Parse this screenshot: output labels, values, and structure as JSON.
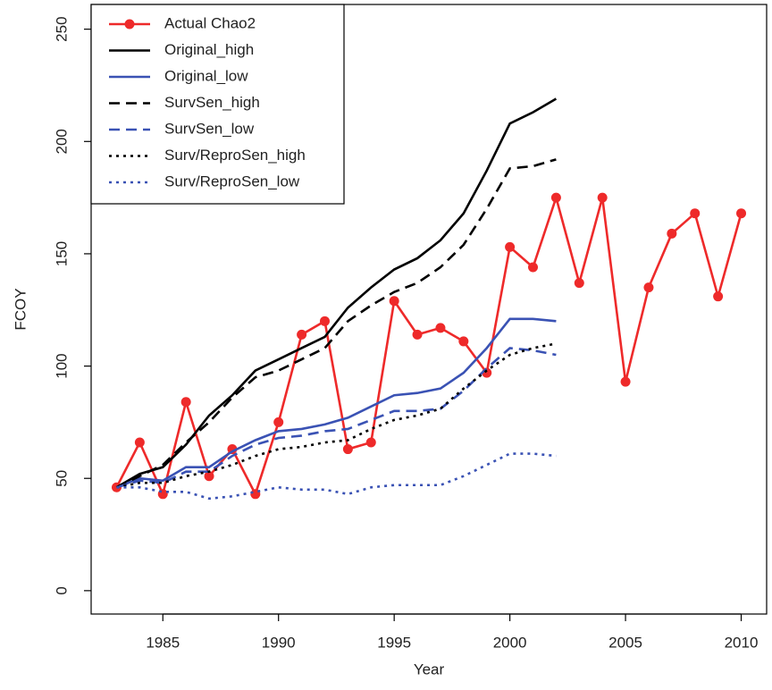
{
  "chart_data": {
    "type": "line",
    "x_label": "Year",
    "y_label": "FCOY",
    "xlim": [
      1981.9,
      2011.1
    ],
    "ylim": [
      -10.4,
      261
    ],
    "xticks": [
      1985,
      1990,
      1995,
      2000,
      2005,
      2010
    ],
    "yticks": [
      0,
      50,
      100,
      150,
      200,
      250
    ],
    "legend": "top-left",
    "series": [
      {
        "name": "Actual Chao2",
        "color": "#ee2a2a",
        "dash": "solid",
        "marker": true,
        "x": [
          1983,
          1984,
          1985,
          1986,
          1987,
          1988,
          1989,
          1990,
          1991,
          1992,
          1993,
          1994,
          1995,
          1996,
          1997,
          1998,
          1999,
          2000,
          2001,
          2002,
          2003,
          2004,
          2005,
          2006,
          2007,
          2008,
          2009,
          2010
        ],
        "values": [
          46,
          66,
          43,
          84,
          51,
          63,
          43,
          75,
          114,
          120,
          63,
          66,
          129,
          114,
          117,
          111,
          97,
          153,
          144,
          175,
          137,
          175,
          93,
          135,
          159,
          168,
          131,
          168
        ]
      },
      {
        "name": "Original_high",
        "color": "#000000",
        "dash": "solid",
        "marker": false,
        "x": [
          1983,
          1984,
          1985,
          1986,
          1987,
          1988,
          1989,
          1990,
          1991,
          1992,
          1993,
          1994,
          1995,
          1996,
          1997,
          1998,
          1999,
          2000,
          2001,
          2002
        ],
        "values": [
          46,
          52,
          55,
          65,
          78,
          87,
          98,
          103,
          108,
          113,
          126,
          135,
          143,
          148,
          156,
          168,
          187,
          208,
          213,
          219
        ]
      },
      {
        "name": "Original_low",
        "color": "#3a52b4",
        "dash": "solid",
        "marker": false,
        "x": [
          1983,
          1984,
          1985,
          1986,
          1987,
          1988,
          1989,
          1990,
          1991,
          1992,
          1993,
          1994,
          1995,
          1996,
          1997,
          1998,
          1999,
          2000,
          2001,
          2002
        ],
        "values": [
          46,
          50,
          49,
          55,
          55,
          62,
          67,
          71,
          72,
          74,
          77,
          82,
          87,
          88,
          90,
          97,
          108,
          121,
          121,
          120
        ]
      },
      {
        "name": "SurvSen_high",
        "color": "#000000",
        "dash": "dashed",
        "marker": false,
        "x": [
          1983,
          1984,
          1985,
          1986,
          1987,
          1988,
          1989,
          1990,
          1991,
          1992,
          1993,
          1994,
          1995,
          1996,
          1997,
          1998,
          1999,
          2000,
          2001,
          2002
        ],
        "values": [
          46,
          51,
          56,
          66,
          75,
          86,
          95,
          98,
          103,
          108,
          120,
          127,
          133,
          137,
          144,
          154,
          170,
          188,
          189,
          192
        ]
      },
      {
        "name": "SurvSen_low",
        "color": "#3a52b4",
        "dash": "dashed",
        "marker": false,
        "x": [
          1983,
          1984,
          1985,
          1986,
          1987,
          1988,
          1989,
          1990,
          1991,
          1992,
          1993,
          1994,
          1995,
          1996,
          1997,
          1998,
          1999,
          2000,
          2001,
          2002
        ],
        "values": [
          46,
          49,
          48,
          53,
          53,
          60,
          65,
          68,
          69,
          71,
          72,
          76,
          80,
          80,
          81,
          89,
          99,
          108,
          107,
          105
        ]
      },
      {
        "name": "Surv/ReproSen_high",
        "color": "#000000",
        "dash": "dotted",
        "marker": false,
        "x": [
          1983,
          1984,
          1985,
          1986,
          1987,
          1988,
          1989,
          1990,
          1991,
          1992,
          1993,
          1994,
          1995,
          1996,
          1997,
          1998,
          1999,
          2000,
          2001,
          2002
        ],
        "values": [
          46,
          48,
          48,
          51,
          53,
          56,
          60,
          63,
          64,
          66,
          67,
          72,
          76,
          78,
          81,
          90,
          98,
          105,
          108,
          110
        ]
      },
      {
        "name": "Surv/ReproSen_low",
        "color": "#3a52b4",
        "dash": "dotted",
        "marker": false,
        "x": [
          1983,
          1984,
          1985,
          1986,
          1987,
          1988,
          1989,
          1990,
          1991,
          1992,
          1993,
          1994,
          1995,
          1996,
          1997,
          1998,
          1999,
          2000,
          2001,
          2002
        ],
        "values": [
          46,
          46,
          44,
          44,
          41,
          42,
          44,
          46,
          45,
          45,
          43,
          46,
          47,
          47,
          47,
          51,
          56,
          61,
          61,
          60
        ]
      }
    ]
  }
}
